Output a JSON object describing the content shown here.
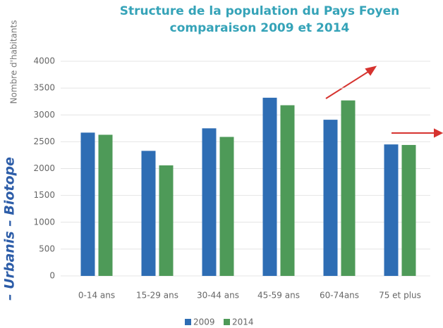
{
  "side_text": "– Urbanis – Biotope",
  "chart_data": {
    "type": "bar",
    "title": [
      "Structure de la population du Pays Foyen",
      "comparaison 2009 et 2014"
    ],
    "y_label": "Nombre d'habitants",
    "categories": [
      "0-14 ans",
      "15-29 ans",
      "30-44 ans",
      "45-59 ans",
      "60-74ans",
      "75 et plus"
    ],
    "series": [
      {
        "name": "2009",
        "color": "#2e6db4",
        "values": [
          2670,
          2330,
          2750,
          3320,
          2910,
          2450
        ]
      },
      {
        "name": "2014",
        "color": "#4e9a58",
        "values": [
          2630,
          2060,
          2590,
          3180,
          3270,
          2440
        ]
      }
    ],
    "ylim": [
      0,
      4000
    ],
    "yticks": [
      0,
      500,
      1000,
      1500,
      2000,
      2500,
      3000,
      3500,
      4000
    ],
    "grid": true,
    "legend": "bottom"
  }
}
